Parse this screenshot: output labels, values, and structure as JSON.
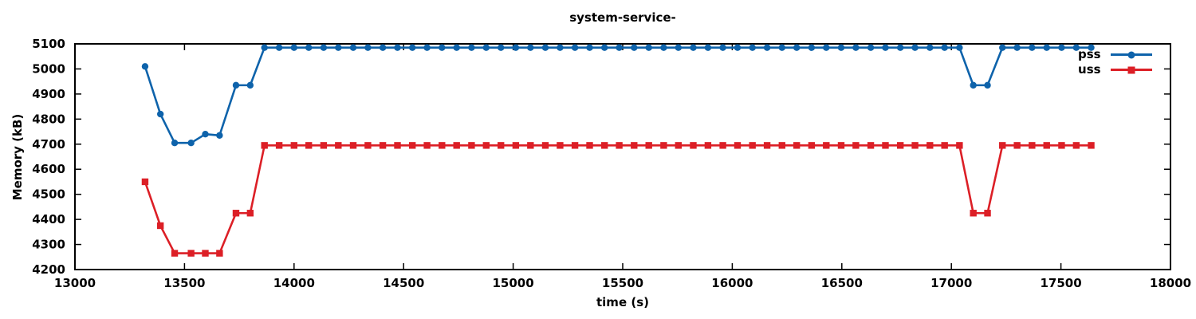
{
  "title": "system-service-",
  "legend": {
    "position": "top-right-inside",
    "items": [
      {
        "label": "pss",
        "marker": "circle"
      },
      {
        "label": "uss",
        "marker": "square"
      }
    ]
  },
  "colors": {
    "pss": "#0e63ab",
    "uss": "#dc1f26",
    "axis": "#000000",
    "background": "#ffffff"
  },
  "chart_data": {
    "type": "line",
    "title": "system-service-",
    "xlabel": "time (s)",
    "ylabel": "Memory (kB)",
    "xlim": [
      13000,
      18000
    ],
    "ylim": [
      4200,
      5100
    ],
    "xticks": [
      13000,
      13500,
      14000,
      14500,
      15000,
      15500,
      16000,
      16500,
      17000,
      17500,
      18000
    ],
    "yticks": [
      4200,
      4300,
      4400,
      4500,
      4600,
      4700,
      4800,
      4900,
      5000,
      5100
    ],
    "grid": false,
    "legend_position": "top-right-inside",
    "x": [
      13320,
      13390,
      13455,
      13530,
      13595,
      13660,
      13735,
      13800,
      13865,
      13932,
      14000,
      14067,
      14135,
      14202,
      14270,
      14337,
      14405,
      14472,
      14540,
      14607,
      14675,
      14742,
      14810,
      14877,
      14944,
      15012,
      15079,
      15147,
      15214,
      15282,
      15349,
      15417,
      15484,
      15552,
      15619,
      15687,
      15754,
      15822,
      15889,
      15957,
      16024,
      16092,
      16159,
      16227,
      16294,
      16362,
      16429,
      16497,
      16564,
      16632,
      16699,
      16767,
      16834,
      16902,
      16969,
      17037,
      17100,
      17165,
      17233,
      17300,
      17368,
      17435,
      17503,
      17570,
      17638
    ],
    "series": [
      {
        "name": "pss",
        "color": "#0e63ab",
        "marker": "circle",
        "values": [
          5010,
          4820,
          4705,
          4705,
          4740,
          4735,
          4935,
          4935,
          5085,
          5085,
          5085,
          5085,
          5085,
          5085,
          5085,
          5085,
          5085,
          5085,
          5085,
          5085,
          5085,
          5085,
          5085,
          5085,
          5085,
          5085,
          5085,
          5085,
          5085,
          5085,
          5085,
          5085,
          5085,
          5085,
          5085,
          5085,
          5085,
          5085,
          5085,
          5085,
          5085,
          5085,
          5085,
          5085,
          5085,
          5085,
          5085,
          5085,
          5085,
          5085,
          5085,
          5085,
          5085,
          5085,
          5085,
          5085,
          4935,
          4935,
          5085,
          5085,
          5085,
          5085,
          5085,
          5085,
          5085
        ]
      },
      {
        "name": "uss",
        "color": "#dc1f26",
        "marker": "square",
        "values": [
          4550,
          4375,
          4265,
          4265,
          4265,
          4265,
          4425,
          4425,
          4695,
          4695,
          4695,
          4695,
          4695,
          4695,
          4695,
          4695,
          4695,
          4695,
          4695,
          4695,
          4695,
          4695,
          4695,
          4695,
          4695,
          4695,
          4695,
          4695,
          4695,
          4695,
          4695,
          4695,
          4695,
          4695,
          4695,
          4695,
          4695,
          4695,
          4695,
          4695,
          4695,
          4695,
          4695,
          4695,
          4695,
          4695,
          4695,
          4695,
          4695,
          4695,
          4695,
          4695,
          4695,
          4695,
          4695,
          4695,
          4425,
          4425,
          4695,
          4695,
          4695,
          4695,
          4695,
          4695,
          4695
        ]
      }
    ]
  }
}
